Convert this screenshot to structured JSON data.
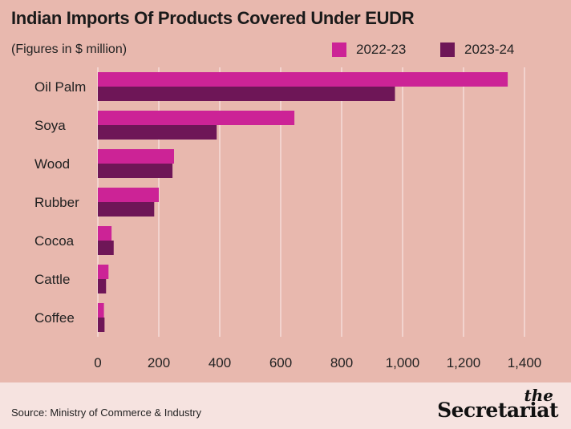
{
  "title": "Indian Imports Of Products Covered Under EUDR",
  "subtitle": "(Figures in $ million)",
  "source": "Source: Ministry of Commerce & Industry",
  "brand": {
    "small": "the",
    "big": "Secretariat"
  },
  "colors": {
    "background": "#e8b8ae",
    "footer": "#f6e3e0",
    "series1": "#cc2396",
    "series2": "#6e1657",
    "grid": "#f5dcd8"
  },
  "chart_data": {
    "type": "bar",
    "orientation": "horizontal",
    "title": "Indian Imports Of Products Covered Under EUDR",
    "subtitle": "(Figures in $ million)",
    "categories": [
      "Oil Palm",
      "Soya",
      "Wood",
      "Rubber",
      "Cocoa",
      "Cattle",
      "Coffee"
    ],
    "series": [
      {
        "name": "2022-23",
        "color": "#cc2396",
        "values": [
          1345,
          645,
          250,
          200,
          45,
          35,
          20
        ]
      },
      {
        "name": "2023-24",
        "color": "#6e1657",
        "values": [
          975,
          390,
          245,
          185,
          52,
          27,
          22
        ]
      }
    ],
    "xlim": [
      0,
      1400
    ],
    "xticks": [
      "0",
      "200",
      "400",
      "600",
      "800",
      "1,000",
      "1,200",
      "1,400"
    ],
    "grid": true,
    "legend_position": "top-right"
  }
}
